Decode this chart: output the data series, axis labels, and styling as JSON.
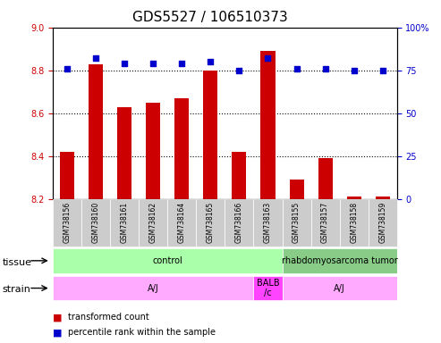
{
  "title": "GDS5527 / 106510373",
  "samples": [
    "GSM738156",
    "GSM738160",
    "GSM738161",
    "GSM738162",
    "GSM738164",
    "GSM738165",
    "GSM738166",
    "GSM738163",
    "GSM738155",
    "GSM738157",
    "GSM738158",
    "GSM738159"
  ],
  "bar_values": [
    8.42,
    8.83,
    8.63,
    8.65,
    8.67,
    8.8,
    8.42,
    8.89,
    8.29,
    8.39,
    8.21,
    8.21
  ],
  "dot_values": [
    76,
    82,
    79,
    79,
    79,
    80,
    75,
    82,
    76,
    76,
    75,
    75
  ],
  "ylim_left": [
    8.2,
    9.0
  ],
  "ylim_right": [
    0,
    100
  ],
  "yticks_left": [
    8.2,
    8.4,
    8.6,
    8.8,
    9.0
  ],
  "yticks_right": [
    0,
    25,
    50,
    75,
    100
  ],
  "ytick_right_labels": [
    "0",
    "25",
    "50",
    "75",
    "100%"
  ],
  "bar_color": "#cc0000",
  "dot_color": "#0000cc",
  "bar_base": 8.2,
  "tissue_labels": [
    {
      "text": "control",
      "start": 0,
      "end": 7,
      "color": "#aaffaa"
    },
    {
      "text": "rhabdomyosarcoma tumor",
      "start": 8,
      "end": 11,
      "color": "#88cc88"
    }
  ],
  "strain_labels": [
    {
      "text": "A/J",
      "start": 0,
      "end": 6,
      "color": "#ffaaff"
    },
    {
      "text": "BALB\n/c",
      "start": 7,
      "end": 7,
      "color": "#ff44ff"
    },
    {
      "text": "A/J",
      "start": 8,
      "end": 11,
      "color": "#ffaaff"
    }
  ],
  "tissue_row_label": "tissue",
  "strain_row_label": "strain",
  "legend_items": [
    {
      "label": "transformed count",
      "color": "#cc0000"
    },
    {
      "label": "percentile rank within the sample",
      "color": "#0000cc"
    }
  ],
  "grid_lines": [
    8.4,
    8.6,
    8.8
  ],
  "title_fontsize": 11,
  "tick_fontsize": 7,
  "label_fontsize": 8,
  "background_color": "#ffffff",
  "plot_bg_color": "#ffffff",
  "xticklabel_bg": "#cccccc"
}
